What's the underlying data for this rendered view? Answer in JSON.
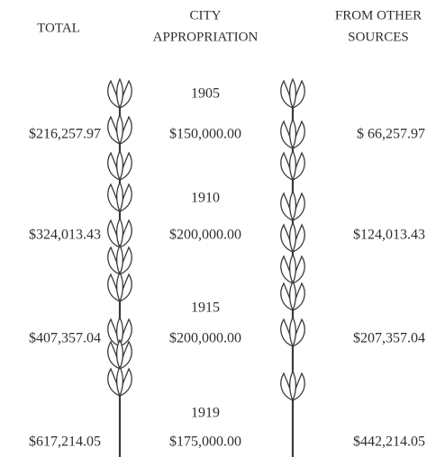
{
  "headers": [
    [
      "TOTAL"
    ],
    [
      "CITY",
      "APPROPRIATION"
    ],
    [
      "FROM OTHER",
      "SOURCES"
    ]
  ],
  "rows": [
    {
      "year": "1905",
      "total": "$216,257.97",
      "city": "$150,000.00",
      "other": "$ 66,257.97"
    },
    {
      "year": "1910",
      "total": "$324,013.43",
      "city": "$200,000.00",
      "other": "$124,013.43"
    },
    {
      "year": "1915",
      "total": "$407,357.04",
      "city": "$200,000.00",
      "other": "$207,357.04"
    },
    {
      "year": "1919",
      "total": "$617,214.05",
      "city": "$175,000.00",
      "other": "$442,214.05"
    }
  ]
}
